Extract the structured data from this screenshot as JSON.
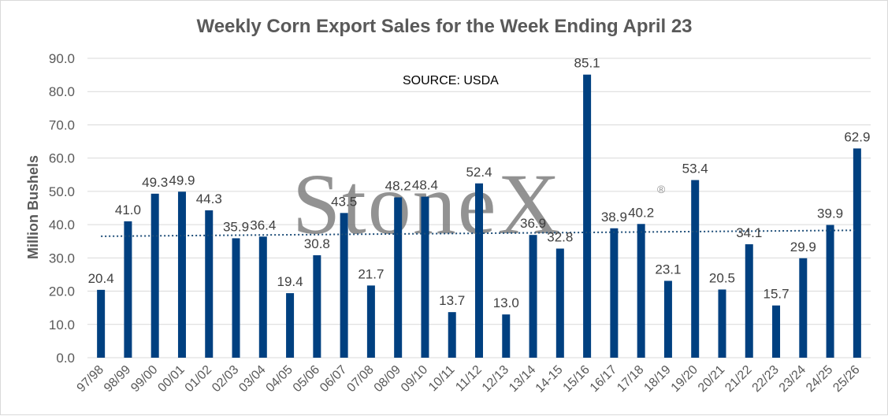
{
  "chart_data": {
    "type": "bar",
    "title": "Weekly Corn Export Sales for the Week Ending April 23",
    "ylabel": "Million Bushels",
    "xlabel": "",
    "source_note": "SOURCE: USDA",
    "watermark": "StoneX",
    "watermark_mark": "®",
    "ylim": [
      0,
      90
    ],
    "ytick_step": 10,
    "yticks": [
      "0.0",
      "10.0",
      "20.0",
      "30.0",
      "40.0",
      "50.0",
      "60.0",
      "70.0",
      "80.0",
      "90.0"
    ],
    "categories": [
      "97/98",
      "98/99",
      "99/00",
      "00/01",
      "01/02",
      "02/03",
      "03/04",
      "04/05",
      "05/06",
      "06/07",
      "07/08",
      "08/09",
      "09/10",
      "10/11",
      "11/12",
      "12/13",
      "13/14",
      "14-15",
      "15/16",
      "16/17",
      "17/18",
      "18/19",
      "19/20",
      "20/21",
      "21/22",
      "22/23",
      "23/24",
      "24/25",
      "25/26"
    ],
    "values": [
      20.4,
      41.0,
      49.3,
      49.9,
      44.3,
      35.9,
      36.4,
      19.4,
      30.8,
      43.5,
      21.7,
      48.2,
      48.4,
      13.7,
      52.4,
      13.0,
      36.9,
      32.8,
      85.1,
      38.9,
      40.2,
      23.1,
      53.4,
      20.5,
      34.1,
      15.7,
      29.9,
      39.9,
      62.9
    ],
    "data_labels": [
      "20.4",
      "41.0",
      "49.3",
      "49.9",
      "44.3",
      "35.9",
      "36.4",
      "19.4",
      "30.8",
      "43.5",
      "21.7",
      "48.2",
      "48.4",
      "13.7",
      "52.4",
      "13.0",
      "36.9",
      "32.8",
      "85.1",
      "38.9",
      "40.2",
      "23.1",
      "53.4",
      "20.5",
      "34.1",
      "15.7",
      "29.9",
      "39.9",
      "62.9"
    ],
    "trendline": {
      "type": "linear",
      "style": "dotted",
      "start": 36.5,
      "end": 38.3
    },
    "grid": true,
    "legend": "none",
    "colors": {
      "bar": "#004080",
      "trend": "#1f4e79",
      "grid": "#d9d9d9",
      "text": "#595959"
    }
  }
}
